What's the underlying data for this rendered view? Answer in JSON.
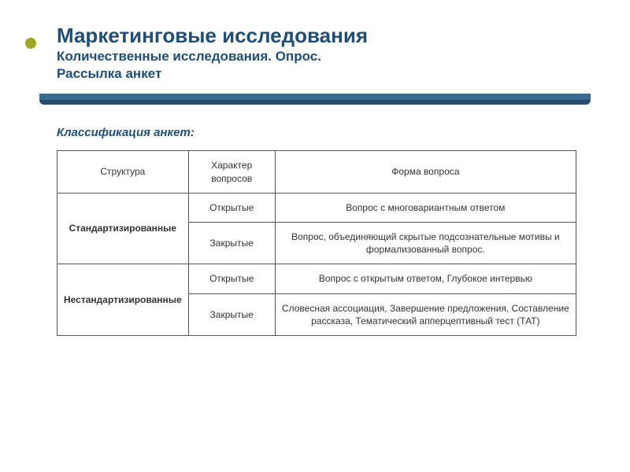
{
  "header": {
    "title": "Маркетинговые исследования",
    "subtitle_line1": "Количественные исследования. Опрос.",
    "subtitle_line2": "Рассылка анкет"
  },
  "section_label": "Классификация анкет:",
  "table": {
    "head": {
      "c1": "Структура",
      "c2": "Характер вопросов",
      "c3": "Форма вопроса"
    },
    "rows": [
      {
        "struct": "Стандартизированные",
        "char": "Открытые",
        "form": "Вопрос с многовариантным ответом"
      },
      {
        "char": "Закрытые",
        "form": "Вопрос, объединяющий скрытые подсознательные мотивы и формализованный вопрос."
      },
      {
        "struct": "Нестандартизированные",
        "char": "Открытые",
        "form": "Вопрос с открытым ответом, Глубокое интервью"
      },
      {
        "char": "Закрытые",
        "form": "Словесная ассоциация, Завершение предложения, Составление рассказа, Тематический апперцептивный тест (ТАТ)"
      }
    ]
  },
  "colors": {
    "heading": "#1f4e79",
    "bullet": "#9ea825",
    "bar_top": "#3a6a8e",
    "bar_bottom": "#254b6d",
    "border": "#555555"
  }
}
